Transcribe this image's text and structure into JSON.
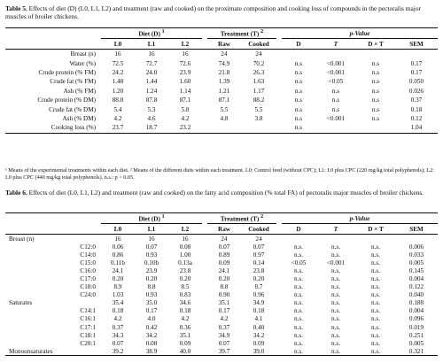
{
  "table5": {
    "caption_label": "Table 5.",
    "caption_text": " Effects of diet (D) (L0, L1, L2) and treatment (raw and cooked) on the proximate composition and cooking loss of compounds in the pectoralis major muscles of broiler chickens.",
    "group_headers": {
      "diet": "Diet (D)",
      "diet_sup": "1",
      "treatment": "Treatment (T)",
      "treatment_sup": "2",
      "pvalue": "p-Value"
    },
    "columns": [
      "L0",
      "L1",
      "L2",
      "Raw",
      "Cooked",
      "D",
      "T",
      "D × T",
      "SEM"
    ],
    "rows": [
      {
        "label": "Breast (n)",
        "values": [
          "16",
          "16",
          "16",
          "24",
          "24",
          "",
          "",
          "",
          ""
        ]
      },
      {
        "label": "Water (%)",
        "values": [
          "72.5",
          "72.7",
          "72.6",
          "74.9",
          "70.2",
          "n.s",
          "<0.001",
          "n.s",
          "0.17"
        ]
      },
      {
        "label": "Crude protein (% FM)",
        "values": [
          "24.2",
          "24.0",
          "23.9",
          "21.8",
          "26.3",
          "n.s",
          "<0.001",
          "n.s",
          "0.17"
        ]
      },
      {
        "label": "Crude fat (% FM)",
        "values": [
          "1.48",
          "1.44",
          "1.60",
          "1.39",
          "1.63",
          "n.s",
          "<0.05",
          "n.s",
          "0.050"
        ]
      },
      {
        "label": "Ash (% FM)",
        "values": [
          "1.20",
          "1.24",
          "1.14",
          "1.21",
          "1.17",
          "n.s",
          "n.s",
          "n.s",
          "0.026"
        ]
      },
      {
        "label": "Crude protein (% DM)",
        "values": [
          "88.0",
          "87.8",
          "87.1",
          "87.1",
          "88.2",
          "n.s",
          "n.s",
          "n.s",
          "0.37"
        ]
      },
      {
        "label": "Crude fat (% DM)",
        "values": [
          "5.4",
          "5.3",
          "5.8",
          "5.5",
          "5.5",
          "n.s",
          "n.s",
          "n.s",
          "0.18"
        ]
      },
      {
        "label": "Ash (% DM)",
        "values": [
          "4.2",
          "4.6",
          "4.2",
          "4.8",
          "3.8",
          "n.s",
          "<0.001",
          "n.s",
          "0.12"
        ]
      },
      {
        "label": "Cooking loss (%)",
        "values": [
          "23.7",
          "18.7",
          "23.2",
          "",
          "",
          "n.s",
          "",
          "",
          "1.04"
        ]
      }
    ],
    "footnote": "¹ Means of the experimental treatments within each diet. ² Means of the different diets within each treatment. L0: Control feed (without CPC); L1: L0 plus CPC (220 mg/kg total polyphenols); L2: L0 plus CPC (440 mg/kg total polyphenols). n.s.: p > 0.05."
  },
  "table6": {
    "caption_label": "Table 6.",
    "caption_text": " Effects of diet (L0, L1, L2) and treatment (raw and cooked) on the fatty acid composition (% total FA) of pectoralis major muscles of broiler chickens.",
    "group_headers": {
      "diet": "Diet (D)",
      "diet_sup": "1",
      "treatment": "Treatment (T)",
      "treatment_sup": "2",
      "pvalue": "p-Value"
    },
    "columns": [
      "L0",
      "L1",
      "L2",
      "Raw",
      "Cooked",
      "D",
      "T",
      "D × T",
      "SEM"
    ],
    "rows": [
      {
        "label": "Breast (n)",
        "values": [
          "16",
          "16",
          "16",
          "24",
          "24",
          "",
          "",
          "",
          ""
        ],
        "align": "left"
      },
      {
        "label": "C12:0",
        "values": [
          "0.06",
          "0.07",
          "0.08",
          "0.07",
          "0.07",
          "n.s.",
          "n.s.",
          "n.s.",
          "0.006"
        ]
      },
      {
        "label": "C14:0",
        "values": [
          "0.86",
          "0.93",
          "1.00",
          "0.89",
          "0.97",
          "n.s.",
          "n.s.",
          "n.s.",
          "0.033"
        ]
      },
      {
        "label": "C15:0",
        "values": [
          "0.11b",
          "0.10b",
          "0.13a",
          "0.09",
          "0.14",
          "<0.05",
          "<0.001",
          "n.s.",
          "0.005"
        ]
      },
      {
        "label": "C16:0",
        "values": [
          "24.1",
          "23.9",
          "23.8",
          "24.1",
          "23.8",
          "n.s.",
          "n.s.",
          "n.s.",
          "0.145"
        ]
      },
      {
        "label": "C17:0",
        "values": [
          "0.20",
          "0.20",
          "0.20",
          "0.20",
          "0.20",
          "n.s.",
          "n.s.",
          "n.s.",
          "0.004"
        ]
      },
      {
        "label": "C18:0",
        "values": [
          "8.9",
          "8.8",
          "8.5",
          "8.8",
          "8.7",
          "n.s.",
          "n.s.",
          "n.s.",
          "0.122"
        ]
      },
      {
        "label": "C24:0",
        "values": [
          "1.03",
          "0.93",
          "0.83",
          "0.90",
          "0.96",
          "n.s.",
          "n.s.",
          "n.s.",
          "0.040"
        ]
      },
      {
        "label": "Saturates",
        "values": [
          "35.4",
          "35.0",
          "34.6",
          "35.1",
          "34.9",
          "n.s.",
          "n.s.",
          "n.s.",
          "0.188"
        ],
        "align": "left"
      },
      {
        "label": "C14:1",
        "values": [
          "0.18",
          "0.17",
          "0.18",
          "0.17",
          "0.18",
          "n.s.",
          "n.s.",
          "n.s.",
          "0.004"
        ]
      },
      {
        "label": "C16:1",
        "values": [
          "4.2",
          "4.0",
          "4.2",
          "4.2",
          "4.1",
          "n.s.",
          "n.s.",
          "n.s.",
          "0.096"
        ]
      },
      {
        "label": "C17:1",
        "values": [
          "0.37",
          "0.42",
          "0.36",
          "0.37",
          "0.40",
          "n.s.",
          "n.s.",
          "n.s.",
          "0.019"
        ]
      },
      {
        "label": "C18:1",
        "values": [
          "34.3",
          "34.2",
          "35.1",
          "34.9",
          "34.2",
          "n.s.",
          "n.s.",
          "n.s.",
          "0.251"
        ]
      },
      {
        "label": "C20:1",
        "values": [
          "0.07",
          "0.08",
          "0.09",
          "0.07",
          "0.09",
          "n.s.",
          "n.s.",
          "n.s.",
          "0.005"
        ]
      },
      {
        "label": "Monounsaturates",
        "values": [
          "39.2",
          "38.9",
          "40.0",
          "39.7",
          "39.0",
          "n.s.",
          "n.s.",
          "n.s.",
          "0.321"
        ],
        "align": "left"
      }
    ]
  }
}
